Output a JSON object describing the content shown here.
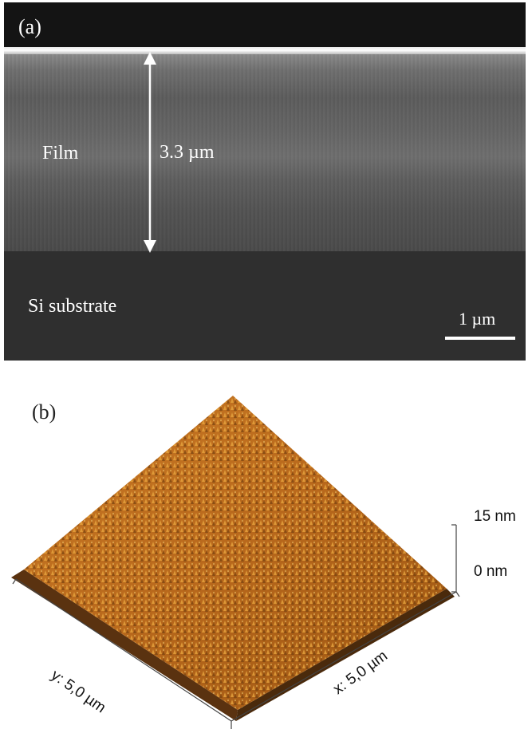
{
  "panel_a": {
    "label": "(a)",
    "film_label": "Film",
    "thickness_label": "3.3 µm",
    "substrate_label": "Si substrate",
    "scale_bar_label": "1 µm"
  },
  "panel_b": {
    "label": "(b)",
    "z_max_label": "15 nm",
    "z_min_label": "0 nm",
    "y_axis_label": "y: 5,0 µm",
    "x_axis_label": "x: 5,0 µm"
  },
  "colors": {
    "afm_dark": "#6b3a0e",
    "afm_mid": "#b8681c",
    "afm_bright": "#e6a43e",
    "afm_highlight": "#f4d27a"
  }
}
